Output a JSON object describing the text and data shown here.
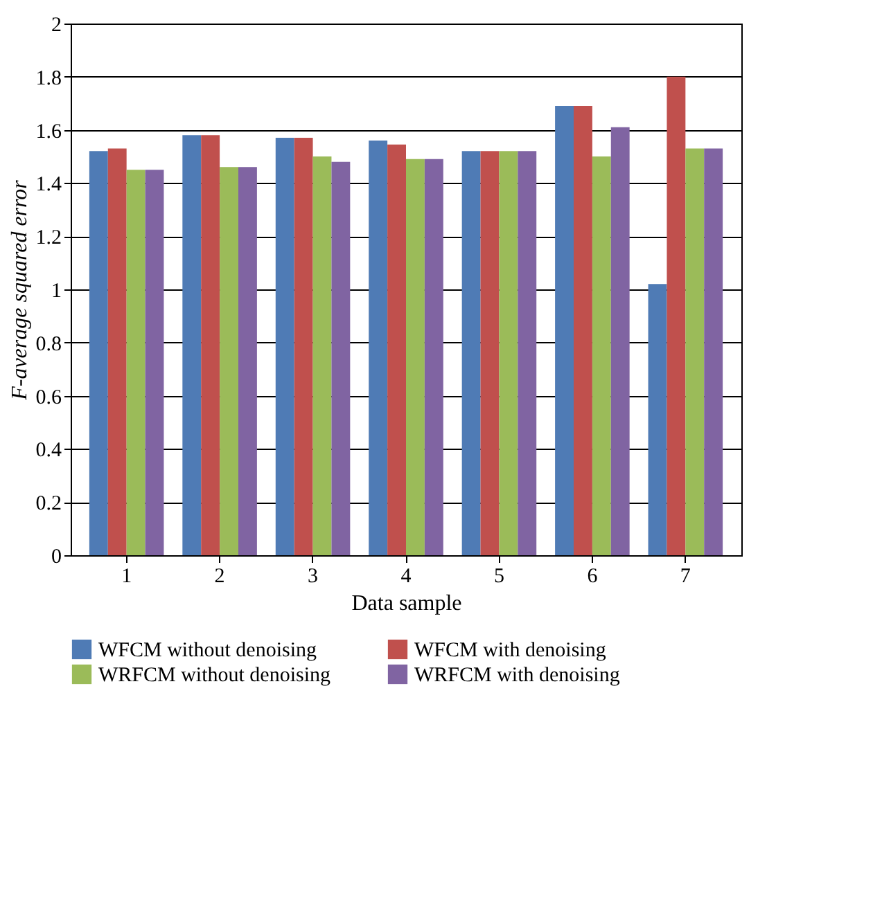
{
  "chart_data": {
    "type": "bar",
    "xlabel": "Data sample",
    "ylabel": "F-average squared error",
    "categories": [
      "1",
      "2",
      "3",
      "4",
      "5",
      "6",
      "7"
    ],
    "series": [
      {
        "name": "WFCM without denoising",
        "color": "#4f7bb5",
        "values": [
          1.52,
          1.58,
          1.57,
          1.56,
          1.52,
          1.69,
          1.02
        ]
      },
      {
        "name": "WFCM with denoising",
        "color": "#c0504d",
        "values": [
          1.53,
          1.58,
          1.57,
          1.545,
          1.52,
          1.69,
          1.8
        ]
      },
      {
        "name": "WRFCM without denoising",
        "color": "#9bbb59",
        "values": [
          1.45,
          1.46,
          1.5,
          1.49,
          1.52,
          1.5,
          1.53
        ]
      },
      {
        "name": "WRFCM with denoising",
        "color": "#8064a2",
        "values": [
          1.45,
          1.46,
          1.48,
          1.49,
          1.52,
          1.61,
          1.53
        ]
      }
    ],
    "ylim": [
      0,
      2
    ],
    "yticks": [
      0,
      0.2,
      0.4,
      0.6,
      0.8,
      1,
      1.2,
      1.4,
      1.6,
      1.8,
      2
    ],
    "grid": "y",
    "legend": "bottom"
  }
}
